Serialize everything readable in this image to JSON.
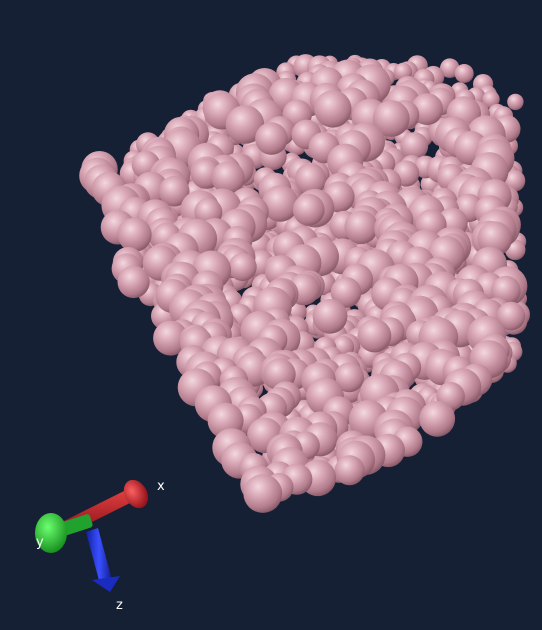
{
  "viewer": {
    "background": "#152035",
    "particle_color": "#c890a0"
  },
  "axes": {
    "x_label": "x",
    "y_label": "y",
    "z_label": "z",
    "x_color": "#c0202a",
    "y_color": "#20c030",
    "z_color": "#2030c8"
  }
}
